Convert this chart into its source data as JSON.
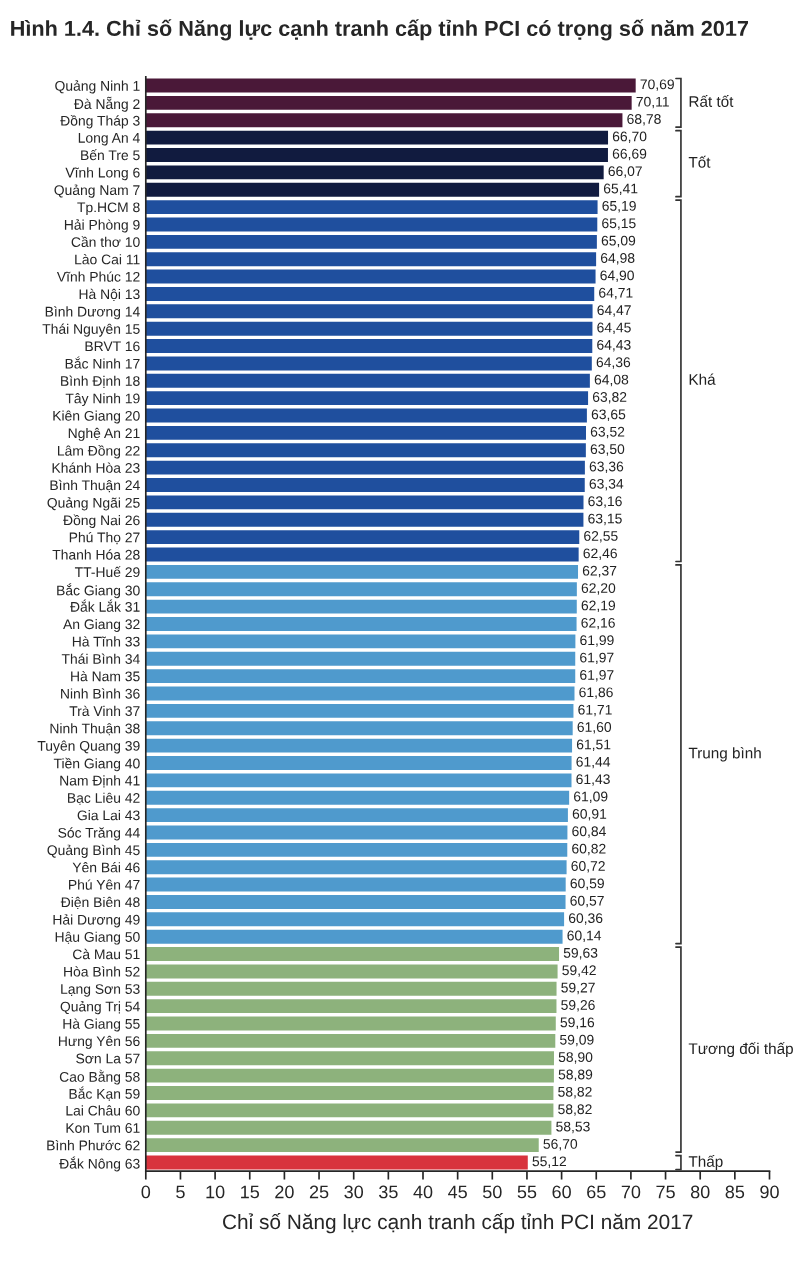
{
  "chart_data": {
    "type": "bar",
    "orientation": "horizontal",
    "title": "Hình 1.4. Chỉ số Năng lực cạnh tranh cấp tỉnh PCI có trọng số năm 2017",
    "xlabel": "Chỉ số Năng lực cạnh tranh cấp tỉnh PCI năm 2017",
    "categories": [
      "Quảng Ninh 1",
      "Đà Nẵng 2",
      "Đồng Tháp 3",
      "Long An 4",
      "Bến Tre 5",
      "Vĩnh Long 6",
      "Quảng Nam 7",
      "Tp.HCM 8",
      "Hải Phòng 9",
      "Cần thơ 10",
      "Lào Cai 11",
      "Vĩnh Phúc 12",
      "Hà Nội 13",
      "Bình Dương 14",
      "Thái Nguyên 15",
      "BRVT 16",
      "Bắc Ninh 17",
      "Bình Định 18",
      "Tây Ninh 19",
      "Kiên Giang 20",
      "Nghệ An 21",
      "Lâm Đồng 22",
      "Khánh Hòa 23",
      "Bình Thuận 24",
      "Quảng Ngãi 25",
      "Đồng Nai 26",
      "Phú Thọ 27",
      "Thanh Hóa 28",
      "TT-Huế 29",
      "Bắc Giang 30",
      "Đắk Lắk 31",
      "An Giang 32",
      "Hà Tĩnh 33",
      "Thái Bình 34",
      "Hà Nam 35",
      "Ninh Bình 36",
      "Trà Vinh 37",
      "Ninh Thuận 38",
      "Tuyên Quang 39",
      "Tiền Giang 40",
      "Nam Định 41",
      "Bạc Liêu 42",
      "Gia Lai 43",
      "Sóc Trăng 44",
      "Quảng Bình 45",
      "Yên Bái 46",
      "Phú Yên 47",
      "Điện Biên 48",
      "Hải Dương 49",
      "Hậu Giang 50",
      "Cà Mau 51",
      "Hòa Bình 52",
      "Lạng Sơn 53",
      "Quảng Trị 54",
      "Hà Giang 55",
      "Hưng Yên 56",
      "Sơn La 57",
      "Cao Bằng 58",
      "Bắc Kạn 59",
      "Lai Châu 60",
      "Kon Tum 61",
      "Bình Phước 62",
      "Đắk Nông 63"
    ],
    "series": [
      {
        "name": "Rất tốt",
        "color": "#4a1838",
        "values": [
          70.69,
          70.11,
          68.78,
          null,
          null,
          null,
          null,
          null,
          null,
          null,
          null,
          null,
          null,
          null,
          null,
          null,
          null,
          null,
          null,
          null,
          null,
          null,
          null,
          null,
          null,
          null,
          null,
          null,
          null,
          null,
          null,
          null,
          null,
          null,
          null,
          null,
          null,
          null,
          null,
          null,
          null,
          null,
          null,
          null,
          null,
          null,
          null,
          null,
          null,
          null,
          null,
          null,
          null,
          null,
          null,
          null,
          null,
          null,
          null,
          null,
          null,
          null,
          null
        ],
        "value_labels": [
          "70,69",
          "70,11",
          "68,78",
          null,
          null,
          null,
          null,
          null,
          null,
          null,
          null,
          null,
          null,
          null,
          null,
          null,
          null,
          null,
          null,
          null,
          null,
          null,
          null,
          null,
          null,
          null,
          null,
          null,
          null,
          null,
          null,
          null,
          null,
          null,
          null,
          null,
          null,
          null,
          null,
          null,
          null,
          null,
          null,
          null,
          null,
          null,
          null,
          null,
          null,
          null,
          null,
          null,
          null,
          null,
          null,
          null,
          null,
          null,
          null,
          null,
          null,
          null,
          null
        ]
      },
      {
        "name": "Tốt",
        "color": "#111b3f",
        "values": [
          null,
          null,
          null,
          66.7,
          66.69,
          66.07,
          65.41,
          null,
          null,
          null,
          null,
          null,
          null,
          null,
          null,
          null,
          null,
          null,
          null,
          null,
          null,
          null,
          null,
          null,
          null,
          null,
          null,
          null,
          null,
          null,
          null,
          null,
          null,
          null,
          null,
          null,
          null,
          null,
          null,
          null,
          null,
          null,
          null,
          null,
          null,
          null,
          null,
          null,
          null,
          null,
          null,
          null,
          null,
          null,
          null,
          null,
          null,
          null,
          null,
          null,
          null,
          null,
          null
        ],
        "value_labels": [
          null,
          null,
          null,
          "66,70",
          "66,69",
          "66,07",
          "65,41",
          null,
          null,
          null,
          null,
          null,
          null,
          null,
          null,
          null,
          null,
          null,
          null,
          null,
          null,
          null,
          null,
          null,
          null,
          null,
          null,
          null,
          null,
          null,
          null,
          null,
          null,
          null,
          null,
          null,
          null,
          null,
          null,
          null,
          null,
          null,
          null,
          null,
          null,
          null,
          null,
          null,
          null,
          null,
          null,
          null,
          null,
          null,
          null,
          null,
          null,
          null,
          null,
          null,
          null,
          null,
          null
        ]
      },
      {
        "name": "Khá",
        "color": "#1f4f9e",
        "values": [
          null,
          null,
          null,
          null,
          null,
          null,
          null,
          65.19,
          65.15,
          65.09,
          64.98,
          64.9,
          64.71,
          64.47,
          64.45,
          64.43,
          64.36,
          64.08,
          63.82,
          63.65,
          63.52,
          63.5,
          63.36,
          63.34,
          63.16,
          63.15,
          62.55,
          62.46,
          null,
          null,
          null,
          null,
          null,
          null,
          null,
          null,
          null,
          null,
          null,
          null,
          null,
          null,
          null,
          null,
          null,
          null,
          null,
          null,
          null,
          null,
          null,
          null,
          null,
          null,
          null,
          null,
          null,
          null,
          null,
          null,
          null,
          null,
          null
        ],
        "value_labels": [
          null,
          null,
          null,
          null,
          null,
          null,
          null,
          "65,19",
          "65,15",
          "65,09",
          "64,98",
          "64,90",
          "64,71",
          "64,47",
          "64,45",
          "64,43",
          "64,36",
          "64,08",
          "63,82",
          "63,65",
          "63,52",
          "63,50",
          "63,36",
          "63,34",
          "63,16",
          "63,15",
          "62,55",
          "62,46",
          null,
          null,
          null,
          null,
          null,
          null,
          null,
          null,
          null,
          null,
          null,
          null,
          null,
          null,
          null,
          null,
          null,
          null,
          null,
          null,
          null,
          null,
          null,
          null,
          null,
          null,
          null,
          null,
          null,
          null,
          null,
          null,
          null,
          null,
          null
        ]
      },
      {
        "name": "Trung bình",
        "color": "#4f9acd",
        "values": [
          null,
          null,
          null,
          null,
          null,
          null,
          null,
          null,
          null,
          null,
          null,
          null,
          null,
          null,
          null,
          null,
          null,
          null,
          null,
          null,
          null,
          null,
          null,
          null,
          null,
          null,
          null,
          null,
          62.37,
          62.2,
          62.19,
          62.16,
          61.99,
          61.97,
          61.97,
          61.86,
          61.71,
          61.6,
          61.51,
          61.44,
          61.43,
          61.09,
          60.91,
          60.84,
          60.82,
          60.72,
          60.59,
          60.57,
          60.36,
          60.14,
          null,
          null,
          null,
          null,
          null,
          null,
          null,
          null,
          null,
          null,
          null,
          null,
          null
        ],
        "value_labels": [
          null,
          null,
          null,
          null,
          null,
          null,
          null,
          null,
          null,
          null,
          null,
          null,
          null,
          null,
          null,
          null,
          null,
          null,
          null,
          null,
          null,
          null,
          null,
          null,
          null,
          null,
          null,
          null,
          "62,37",
          "62,20",
          "62,19",
          "62,16",
          "61,99",
          "61,97",
          "61,97",
          "61,86",
          "61,71",
          "61,60",
          "61,51",
          "61,44",
          "61,43",
          "61,09",
          "60,91",
          "60,84",
          "60,82",
          "60,72",
          "60,59",
          "60,57",
          "60,36",
          "60,14",
          null,
          null,
          null,
          null,
          null,
          null,
          null,
          null,
          null,
          null,
          null,
          null,
          null
        ]
      },
      {
        "name": "Tương đối thấp",
        "color": "#8db27c",
        "values": [
          null,
          null,
          null,
          null,
          null,
          null,
          null,
          null,
          null,
          null,
          null,
          null,
          null,
          null,
          null,
          null,
          null,
          null,
          null,
          null,
          null,
          null,
          null,
          null,
          null,
          null,
          null,
          null,
          null,
          null,
          null,
          null,
          null,
          null,
          null,
          null,
          null,
          null,
          null,
          null,
          null,
          null,
          null,
          null,
          null,
          null,
          null,
          null,
          null,
          null,
          59.63,
          59.42,
          59.27,
          59.26,
          59.16,
          59.09,
          58.9,
          58.89,
          58.82,
          58.82,
          58.53,
          56.7,
          null
        ],
        "value_labels": [
          null,
          null,
          null,
          null,
          null,
          null,
          null,
          null,
          null,
          null,
          null,
          null,
          null,
          null,
          null,
          null,
          null,
          null,
          null,
          null,
          null,
          null,
          null,
          null,
          null,
          null,
          null,
          null,
          null,
          null,
          null,
          null,
          null,
          null,
          null,
          null,
          null,
          null,
          null,
          null,
          null,
          null,
          null,
          null,
          null,
          null,
          null,
          null,
          null,
          null,
          "59,63",
          "59,42",
          "59,27",
          "59,26",
          "59,16",
          "59,09",
          "58,90",
          "58,89",
          "58,82",
          "58,82",
          "58,53",
          "56,70",
          null
        ]
      },
      {
        "name": "Thấp",
        "color": "#d8333d",
        "values": [
          null,
          null,
          null,
          null,
          null,
          null,
          null,
          null,
          null,
          null,
          null,
          null,
          null,
          null,
          null,
          null,
          null,
          null,
          null,
          null,
          null,
          null,
          null,
          null,
          null,
          null,
          null,
          null,
          null,
          null,
          null,
          null,
          null,
          null,
          null,
          null,
          null,
          null,
          null,
          null,
          null,
          null,
          null,
          null,
          null,
          null,
          null,
          null,
          null,
          null,
          null,
          null,
          null,
          null,
          null,
          null,
          null,
          null,
          null,
          null,
          null,
          null,
          55.12
        ],
        "value_labels": [
          null,
          null,
          null,
          null,
          null,
          null,
          null,
          null,
          null,
          null,
          null,
          null,
          null,
          null,
          null,
          null,
          null,
          null,
          null,
          null,
          null,
          null,
          null,
          null,
          null,
          null,
          null,
          null,
          null,
          null,
          null,
          null,
          null,
          null,
          null,
          null,
          null,
          null,
          null,
          null,
          null,
          null,
          null,
          null,
          null,
          null,
          null,
          null,
          null,
          null,
          null,
          null,
          null,
          null,
          null,
          null,
          null,
          null,
          null,
          null,
          null,
          null,
          "55,12"
        ]
      }
    ],
    "xlim": [
      0,
      90
    ],
    "xticks": [
      0,
      5,
      10,
      15,
      20,
      25,
      30,
      35,
      40,
      45,
      50,
      55,
      60,
      65,
      70,
      75,
      80,
      85,
      90
    ]
  }
}
